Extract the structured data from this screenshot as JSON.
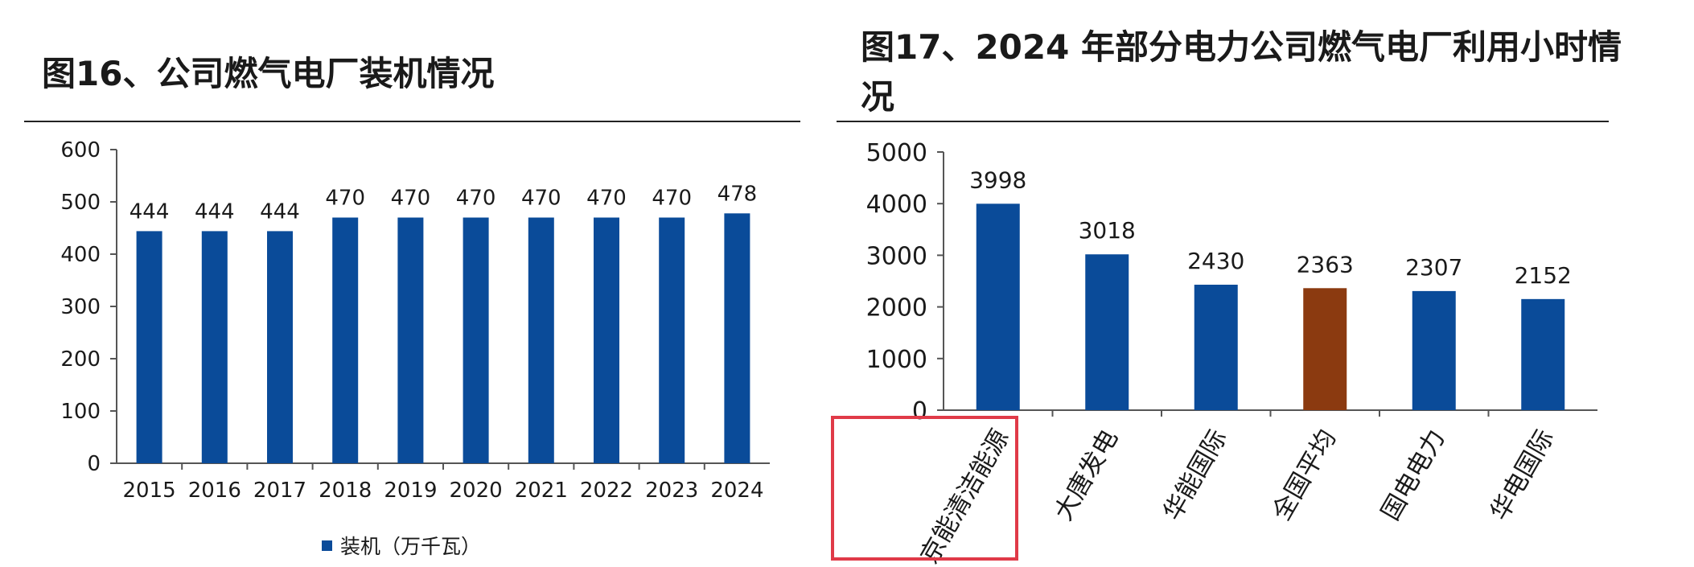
{
  "left_panel": {
    "title": "图16、公司燃气电厂装机情况"
  },
  "right_panel": {
    "title": "图17、2024 年部分电力公司燃气电厂利用小时情况"
  },
  "chart_data": [
    {
      "type": "bar",
      "title": "图16、公司燃气电厂装机情况",
      "categories": [
        "2015",
        "2016",
        "2017",
        "2018",
        "2019",
        "2020",
        "2021",
        "2022",
        "2023",
        "2024"
      ],
      "series": [
        {
          "name": "装机（万千瓦）",
          "values": [
            444,
            444,
            444,
            470,
            470,
            470,
            470,
            470,
            470,
            478
          ]
        }
      ],
      "ylim": [
        0,
        600
      ],
      "yticks": [
        0,
        100,
        200,
        300,
        400,
        500,
        600
      ],
      "legend": "bottom",
      "grid": false,
      "colors": {
        "bar": "#0a4b99"
      }
    },
    {
      "type": "bar",
      "title": "图17、2024 年部分电力公司燃气电厂利用小时情况",
      "categories": [
        "京能清洁能源",
        "大唐发电",
        "华能国际",
        "全国平均",
        "国电电力",
        "华电国际"
      ],
      "values": [
        3998,
        3018,
        2430,
        2363,
        2307,
        2152
      ],
      "ylim": [
        0,
        5000
      ],
      "yticks": [
        0,
        1000,
        2000,
        3000,
        4000,
        5000
      ],
      "grid": false,
      "colors": {
        "bar": "#0a4b99",
        "highlight_bar": "#8b3a10",
        "highlight_box": "#e03a48"
      },
      "highlight_bar_category": "全国平均",
      "highlight_box_category": "京能清洁能源"
    }
  ]
}
